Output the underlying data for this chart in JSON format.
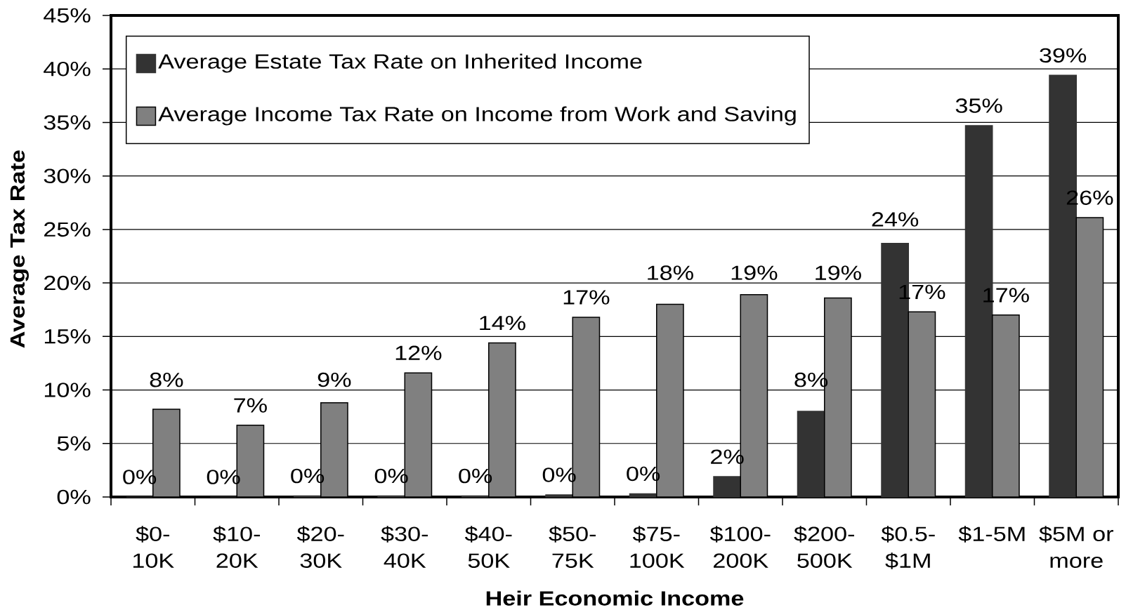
{
  "chart_data": {
    "type": "bar",
    "xlabel": "Heir Economic Income",
    "ylabel": "Average Tax Rate",
    "categories": [
      "$0-10K",
      "$10-20K",
      "$20-30K",
      "$30-40K",
      "$40-50K",
      "$50-75K",
      "$75-100K",
      "$100-200K",
      "$200-500K",
      "$0.5-$1M",
      "$1-5M",
      "$5M or more"
    ],
    "series": [
      {
        "name": "Average Estate Tax Rate on Inherited Income",
        "color": "#333333",
        "values": [
          0,
          0,
          0.1,
          0.1,
          0.1,
          0.2,
          0.3,
          1.9,
          8.0,
          23.7,
          34.7,
          39.4
        ],
        "value_labels": [
          "0%",
          "0%",
          "0%",
          "0%",
          "0%",
          "0%",
          "0%",
          "2%",
          "8%",
          "24%",
          "35%",
          "39%"
        ]
      },
      {
        "name": "Average Income Tax Rate on Income from Work and Saving",
        "color": "#808080",
        "values": [
          8.2,
          6.7,
          8.8,
          11.6,
          14.4,
          16.8,
          18.0,
          18.9,
          18.6,
          17.3,
          17.0,
          26.1
        ],
        "value_labels": [
          "8%",
          "7%",
          "9%",
          "12%",
          "14%",
          "17%",
          "18%",
          "19%",
          "19%",
          "17%",
          "17%",
          "26%"
        ]
      }
    ],
    "ylim": [
      0,
      45
    ],
    "yticks": [
      {
        "value": 0,
        "label": "0%"
      },
      {
        "value": 5,
        "label": "5%"
      },
      {
        "value": 10,
        "label": "10%"
      },
      {
        "value": 15,
        "label": "15%"
      },
      {
        "value": 20,
        "label": "20%"
      },
      {
        "value": 25,
        "label": "25%"
      },
      {
        "value": 30,
        "label": "30%"
      },
      {
        "value": 35,
        "label": "35%"
      },
      {
        "value": 40,
        "label": "40%"
      },
      {
        "value": 45,
        "label": "45%"
      }
    ],
    "grid": "y",
    "legend": "top left"
  }
}
